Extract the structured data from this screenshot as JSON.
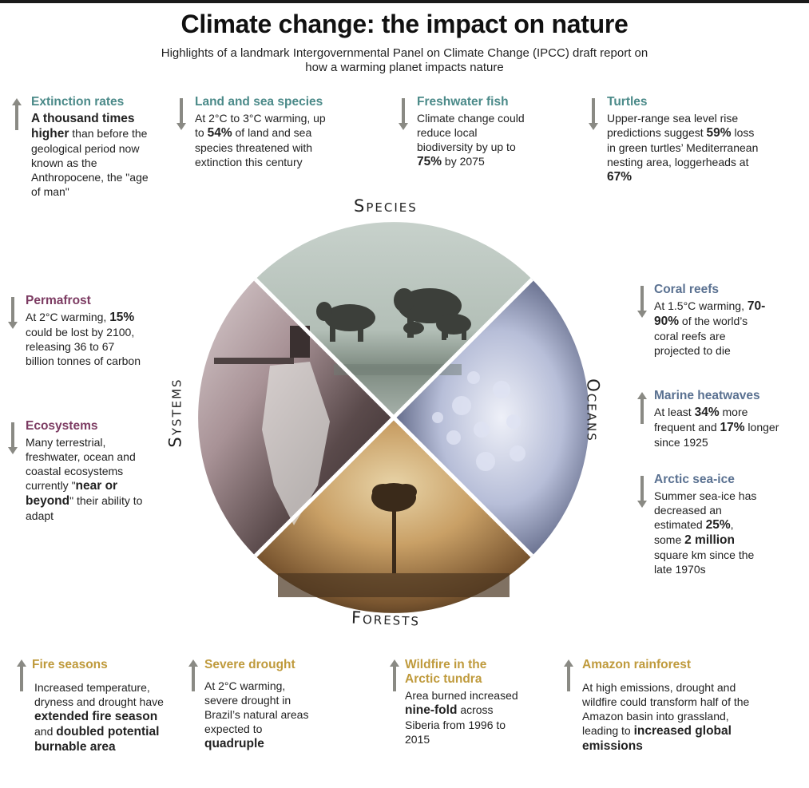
{
  "title": "Climate change: the impact on nature",
  "subtitle": "Highlights of a landmark Intergovernmental Panel on Climate Change (IPCC) draft report on how a warming planet impacts nature",
  "colors": {
    "species": "#4b8a89",
    "oceans": "#5a7191",
    "systems": "#7c3b62",
    "forests": "#bf9a3c",
    "arrow": "#8a8a84"
  },
  "segments": {
    "species": "Species",
    "oceans": "Oceans",
    "forests": "Forests",
    "systems": "Systems"
  },
  "facts": {
    "extinction": {
      "direction": "up",
      "head": "Extinction rates",
      "b1": "A thousand times higher",
      "t1": " than before the geological period now known as the Anthropocene, the \"age of man\""
    },
    "landsea": {
      "direction": "down",
      "head": "Land and sea species",
      "t1": "At 2°C to 3°C warming, up to ",
      "b1": "54%",
      "t2": " of land and sea species threatened with extinction this century"
    },
    "fish": {
      "direction": "down",
      "head": "Freshwater fish",
      "t1": "Climate change could reduce local biodiversity by up to ",
      "b1": "75%",
      "t2": " by 2075"
    },
    "turtles": {
      "direction": "down",
      "head": "Turtles",
      "t1": "Upper-range sea level rise predictions suggest ",
      "b1": "59%",
      "t2": " loss in green turtles’ Mediterranean nesting area, loggerheads at ",
      "b2": "67%"
    },
    "permafrost": {
      "direction": "down",
      "head": "Permafrost",
      "t1": "At 2°C warming, ",
      "b1": "15%",
      "t2": " could be lost by 2100, releasing 36 to 67 billion tonnes of carbon"
    },
    "ecosystems": {
      "direction": "down",
      "head": "Ecosystems",
      "t1": "Many terrestrial, freshwater, ocean and coastal ecosystems currently \"",
      "b1": "near or beyond",
      "t2": "\" their ability to adapt"
    },
    "coral": {
      "direction": "down",
      "head": "Coral reefs",
      "t1": "At 1.5°C warming, ",
      "b1": "70-90%",
      "t2": " of the world’s coral reefs are projected to die"
    },
    "heatwaves": {
      "direction": "up",
      "head": "Marine heatwaves",
      "t1": "At least ",
      "b1": "34%",
      "t2": " more frequent and ",
      "b2": "17%",
      "t3": " longer since 1925"
    },
    "seaice": {
      "direction": "down",
      "head": "Arctic sea-ice",
      "t1": "Summer sea-ice has decreased an estimated ",
      "b1": "25%",
      "t2": ", some ",
      "b2": "2 million",
      "t3": " square km since the late 1970s"
    },
    "fire": {
      "direction": "up",
      "head": "Fire seasons",
      "t1": "Increased temperature, dryness and drought have ",
      "b1": "extended fire season",
      "t2": " and ",
      "b2": "doubled potential burnable area"
    },
    "drought": {
      "direction": "up",
      "head": "Severe drought",
      "t1": "At 2°C warming, severe drought in Brazil’s natural areas expected to ",
      "b1": "quadruple"
    },
    "wildfire": {
      "direction": "up",
      "head": "Wildfire in the Arctic tundra",
      "t1": "Area burned increased ",
      "b1": "nine-fold",
      "t2": " across Siberia from 1996 to 2015"
    },
    "amazon": {
      "direction": "up",
      "head": "Amazon rainforest",
      "t1": "At high emissions, drought and wildfire could transform half of the Amazon basin into grassland, leading to ",
      "b1": "increased global emissions"
    }
  }
}
